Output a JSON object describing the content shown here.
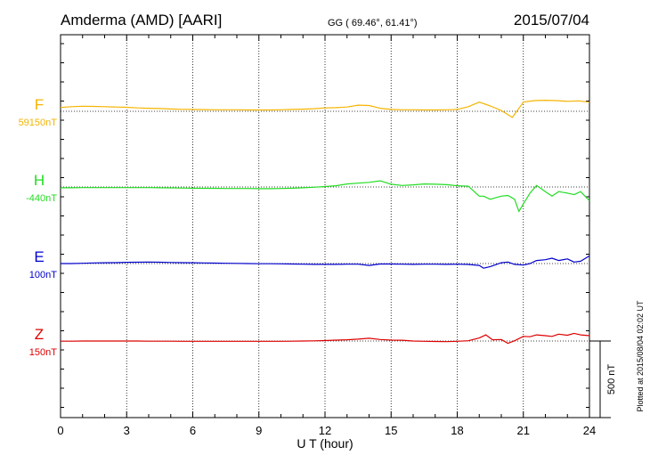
{
  "chart_data": {
    "type": "line",
    "title": "Amderma (AMD)  [AARI]",
    "coordinates": "GG ( 69.46°,  61.41°)",
    "date": "2015/07/04",
    "xlabel": "U T (hour)",
    "xlim": [
      0,
      24
    ],
    "xticks": [
      "0",
      "3",
      "6",
      "9",
      "12",
      "15",
      "18",
      "21",
      "24"
    ],
    "grid": true,
    "scale_label": "500 nT",
    "plot_note": "Plotted at 2015/08/04 02:02 UT",
    "series": [
      {
        "name": "F",
        "baseline_label": "59150nT",
        "color": "#f5b400",
        "x": [
          0,
          0.5,
          1,
          1.5,
          2,
          2.5,
          3,
          3.5,
          4,
          4.5,
          5,
          5.5,
          6,
          6.5,
          7,
          7.5,
          8,
          8.5,
          9,
          9.5,
          10,
          10.5,
          11,
          11.5,
          12,
          12.5,
          13,
          13.5,
          14,
          14.5,
          15,
          15.5,
          16,
          16.5,
          17,
          17.5,
          18,
          18.5,
          19,
          19.5,
          20,
          20.5,
          21,
          21.5,
          22,
          22.5,
          23,
          23.5,
          24
        ],
        "y": [
          25,
          30,
          33,
          32,
          30,
          28,
          26,
          22,
          20,
          18,
          15,
          13,
          12,
          11,
          10,
          10,
          10,
          9,
          9,
          9,
          10,
          12,
          14,
          17,
          22,
          24,
          28,
          40,
          38,
          20,
          12,
          10,
          10,
          9,
          9,
          10,
          12,
          30,
          60,
          35,
          5,
          -40,
          60,
          70,
          72,
          70,
          65,
          68,
          60
        ]
      },
      {
        "name": "H",
        "baseline_label": "-440nT",
        "color": "#22dd22",
        "x": [
          0,
          0.5,
          1,
          1.5,
          2,
          2.5,
          3,
          3.5,
          4,
          4.5,
          5,
          5.5,
          6,
          6.5,
          7,
          7.5,
          8,
          8.5,
          9,
          9.5,
          10,
          10.5,
          11,
          11.5,
          12,
          12.5,
          13,
          13.5,
          14,
          14.5,
          15,
          15.5,
          16,
          16.5,
          17,
          17.5,
          18,
          18.5,
          19,
          19.2,
          19.5,
          20,
          20.3,
          20.6,
          20.8,
          21,
          21.3,
          21.6,
          22,
          22.3,
          22.6,
          23,
          23.3,
          23.6,
          24
        ],
        "y": [
          -5,
          -5,
          -4,
          -4,
          -4,
          -4,
          -4,
          -4,
          -4,
          -5,
          -6,
          -7,
          -8,
          -9,
          -9,
          -10,
          -10,
          -10,
          -11,
          -11,
          -10,
          -8,
          -5,
          -2,
          3,
          8,
          20,
          25,
          30,
          40,
          18,
          10,
          14,
          20,
          18,
          15,
          8,
          5,
          -60,
          -60,
          -80,
          -60,
          -55,
          -80,
          -160,
          -110,
          -40,
          10,
          -30,
          -60,
          -30,
          -40,
          -50,
          -30,
          -90
        ]
      },
      {
        "name": "E",
        "baseline_label": "100nT",
        "color": "#0000cc",
        "x": [
          0,
          0.5,
          1,
          1.5,
          2,
          2.5,
          3,
          3.5,
          4,
          4.5,
          5,
          5.5,
          6,
          6.5,
          7,
          7.5,
          8,
          8.5,
          9,
          9.5,
          10,
          10.5,
          11,
          11.5,
          12,
          12.5,
          13,
          13.5,
          14,
          14.5,
          15,
          15.5,
          16,
          16.5,
          17,
          17.5,
          18,
          18.5,
          19,
          19.2,
          19.5,
          20,
          20.3,
          20.6,
          21,
          21.3,
          21.6,
          22,
          22.3,
          22.6,
          23,
          23.3,
          23.6,
          24
        ],
        "y": [
          0,
          0,
          2,
          4,
          5,
          6,
          8,
          9,
          10,
          9,
          7,
          6,
          5,
          4,
          3,
          2,
          1,
          0,
          -1,
          -1,
          -2,
          -3,
          -4,
          -5,
          -5,
          -5,
          -4,
          -4,
          -12,
          -3,
          -3,
          -4,
          -5,
          -4,
          -4,
          -5,
          -4,
          -6,
          -12,
          -30,
          -20,
          5,
          10,
          -5,
          -10,
          0,
          20,
          25,
          35,
          20,
          30,
          10,
          15,
          50
        ]
      },
      {
        "name": "Z",
        "baseline_label": "150nT",
        "color": "#dd0000",
        "x": [
          0,
          0.5,
          1,
          1.5,
          2,
          2.5,
          3,
          3.5,
          4,
          4.5,
          5,
          5.5,
          6,
          6.5,
          7,
          7.5,
          8,
          8.5,
          9,
          9.5,
          10,
          10.5,
          11,
          11.5,
          12,
          12.5,
          13,
          13.5,
          14,
          14.5,
          15,
          15.5,
          16,
          16.5,
          17,
          17.5,
          18,
          18.5,
          19,
          19.3,
          19.6,
          20,
          20.3,
          20.6,
          21,
          21.3,
          21.6,
          22,
          22.3,
          22.6,
          23,
          23.3,
          23.6,
          24
        ],
        "y": [
          -1,
          -1,
          0,
          0,
          0,
          0,
          0,
          0,
          -1,
          -1,
          -1,
          -2,
          -2,
          -2,
          -2,
          -2,
          -2,
          -2,
          -2,
          -2,
          -2,
          -1,
          0,
          1,
          3,
          6,
          8,
          12,
          18,
          10,
          6,
          5,
          0,
          -2,
          -3,
          -4,
          -2,
          2,
          20,
          40,
          8,
          10,
          -15,
          2,
          30,
          28,
          40,
          35,
          30,
          45,
          38,
          50,
          40,
          35
        ]
      }
    ]
  }
}
